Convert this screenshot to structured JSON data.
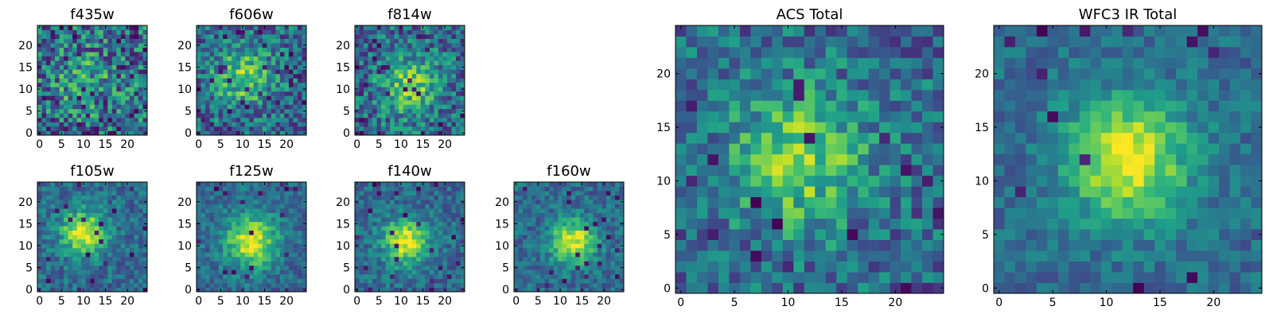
{
  "chart_data": [
    {
      "type": "heatmap",
      "title": "f435w",
      "grid_size": 25,
      "xticks": [
        0,
        5,
        10,
        15,
        20
      ],
      "yticks": [
        0,
        5,
        10,
        15,
        20
      ],
      "colormap": "viridis",
      "peak": [
        10,
        12
      ],
      "spread": 5.0,
      "peak_strength": 0.2,
      "noise": 0.34,
      "dark_fraction": 0.04,
      "seed": 11
    },
    {
      "type": "heatmap",
      "title": "f606w",
      "grid_size": 25,
      "xticks": [
        0,
        5,
        10,
        15,
        20
      ],
      "yticks": [
        0,
        5,
        10,
        15,
        20
      ],
      "colormap": "viridis",
      "peak": [
        10,
        13
      ],
      "spread": 4.5,
      "peak_strength": 0.42,
      "noise": 0.26,
      "dark_fraction": 0.05,
      "seed": 23
    },
    {
      "type": "heatmap",
      "title": "f814w",
      "grid_size": 25,
      "xticks": [
        0,
        5,
        10,
        15,
        20
      ],
      "yticks": [
        0,
        5,
        10,
        15,
        20
      ],
      "colormap": "viridis",
      "peak": [
        12,
        11
      ],
      "spread": 4.5,
      "peak_strength": 0.42,
      "noise": 0.26,
      "dark_fraction": 0.05,
      "seed": 37
    },
    {
      "type": "heatmap",
      "title": "f105w",
      "grid_size": 25,
      "xticks": [
        0,
        5,
        10,
        15,
        20
      ],
      "yticks": [
        0,
        5,
        10,
        15,
        20
      ],
      "colormap": "viridis",
      "peak": [
        10,
        13
      ],
      "spread": 3.5,
      "peak_strength": 0.62,
      "noise": 0.16,
      "dark_fraction": 0.03,
      "seed": 41
    },
    {
      "type": "heatmap",
      "title": "f125w",
      "grid_size": 25,
      "xticks": [
        0,
        5,
        10,
        15,
        20
      ],
      "yticks": [
        0,
        5,
        10,
        15,
        20
      ],
      "colormap": "viridis",
      "peak": [
        12,
        11
      ],
      "spread": 4.0,
      "peak_strength": 0.62,
      "noise": 0.15,
      "dark_fraction": 0.03,
      "seed": 53
    },
    {
      "type": "heatmap",
      "title": "f140w",
      "grid_size": 25,
      "xticks": [
        0,
        5,
        10,
        15,
        20
      ],
      "yticks": [
        0,
        5,
        10,
        15,
        20
      ],
      "colormap": "viridis",
      "peak": [
        11,
        11
      ],
      "spread": 3.5,
      "peak_strength": 0.62,
      "noise": 0.15,
      "dark_fraction": 0.03,
      "seed": 67
    },
    {
      "type": "heatmap",
      "title": "f160w",
      "grid_size": 25,
      "xticks": [
        0,
        5,
        10,
        15,
        20
      ],
      "yticks": [
        0,
        5,
        10,
        15,
        20
      ],
      "colormap": "viridis",
      "peak": [
        13,
        11
      ],
      "spread": 3.5,
      "peak_strength": 0.62,
      "noise": 0.15,
      "dark_fraction": 0.03,
      "seed": 71
    },
    {
      "type": "heatmap",
      "title": "ACS Total",
      "grid_size": 25,
      "xticks": [
        0,
        5,
        10,
        15,
        20
      ],
      "yticks": [
        0,
        5,
        10,
        15,
        20
      ],
      "colormap": "viridis",
      "peak": [
        11,
        12
      ],
      "spread": 4.5,
      "peak_strength": 0.45,
      "noise": 0.22,
      "dark_fraction": 0.03,
      "seed": 83
    },
    {
      "type": "heatmap",
      "title": "WFC3 IR Total",
      "grid_size": 25,
      "xticks": [
        0,
        5,
        10,
        15,
        20
      ],
      "yticks": [
        0,
        5,
        10,
        15,
        20
      ],
      "colormap": "viridis",
      "peak": [
        12,
        12
      ],
      "spread": 4.0,
      "peak_strength": 0.62,
      "noise": 0.13,
      "dark_fraction": 0.02,
      "seed": 97
    }
  ]
}
